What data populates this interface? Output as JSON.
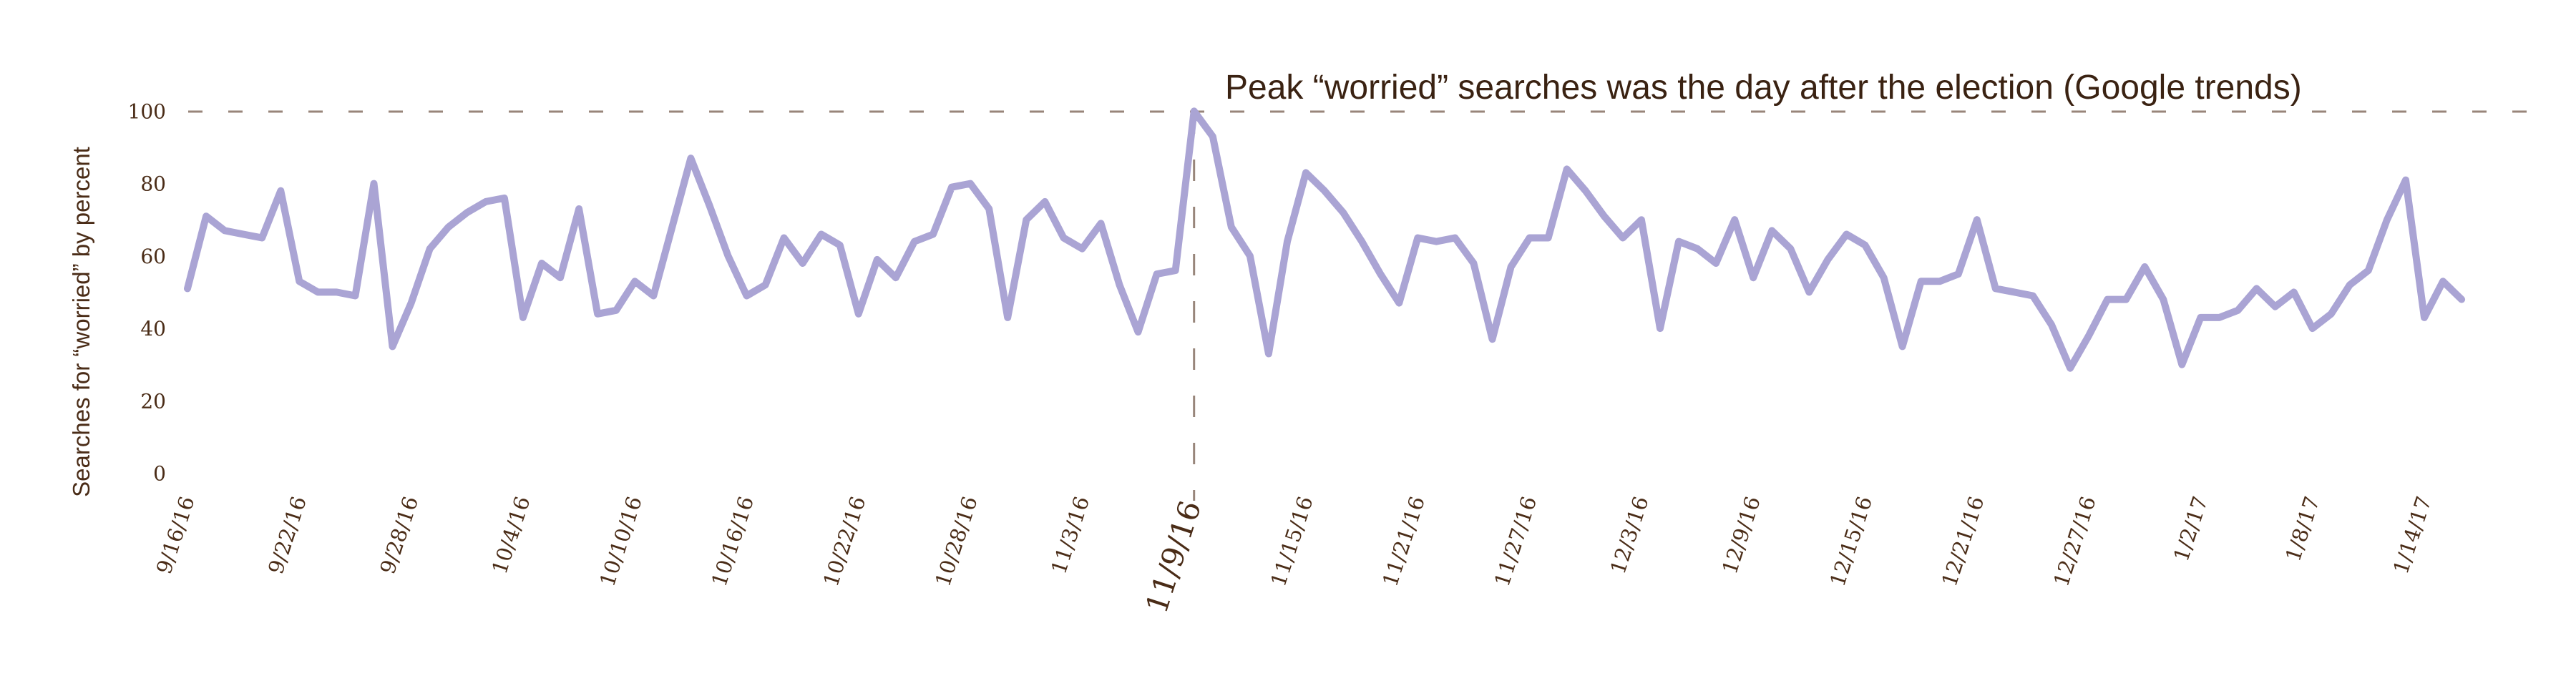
{
  "annotation": "Peak “worried” searches was the day after the election (Google trends)",
  "y_axis": {
    "title": "Searches for “worried” by percent",
    "ticks": [
      0,
      20,
      40,
      60,
      80,
      100
    ]
  },
  "x_axis": {
    "ticks": [
      {
        "label": "9/16/16",
        "day": 0,
        "emphasis": false
      },
      {
        "label": "9/22/16",
        "day": 6,
        "emphasis": false
      },
      {
        "label": "9/28/16",
        "day": 12,
        "emphasis": false
      },
      {
        "label": "10/4/16",
        "day": 18,
        "emphasis": false
      },
      {
        "label": "10/10/16",
        "day": 24,
        "emphasis": false
      },
      {
        "label": "10/16/16",
        "day": 30,
        "emphasis": false
      },
      {
        "label": "10/22/16",
        "day": 36,
        "emphasis": false
      },
      {
        "label": "10/28/16",
        "day": 42,
        "emphasis": false
      },
      {
        "label": "11/3/16",
        "day": 48,
        "emphasis": false
      },
      {
        "label": "11/9/16",
        "day": 54,
        "emphasis": true
      },
      {
        "label": "11/15/16",
        "day": 60,
        "emphasis": false
      },
      {
        "label": "11/21/16",
        "day": 66,
        "emphasis": false
      },
      {
        "label": "11/27/16",
        "day": 72,
        "emphasis": false
      },
      {
        "label": "12/3/16",
        "day": 78,
        "emphasis": false
      },
      {
        "label": "12/9/16",
        "day": 84,
        "emphasis": false
      },
      {
        "label": "12/15/16",
        "day": 90,
        "emphasis": false
      },
      {
        "label": "12/21/16",
        "day": 96,
        "emphasis": false
      },
      {
        "label": "12/27/16",
        "day": 102,
        "emphasis": false
      },
      {
        "label": "1/2/17",
        "day": 108,
        "emphasis": false
      },
      {
        "label": "1/8/17",
        "day": 114,
        "emphasis": false
      },
      {
        "label": "1/14/17",
        "day": 120,
        "emphasis": false
      }
    ]
  },
  "colors": {
    "line": "#aaa4d4",
    "guide": "#98857a",
    "text": "#4a2c17",
    "annotation_text": "#3a2212",
    "background": "#ffffff"
  },
  "chart_data": {
    "type": "line",
    "title": "Peak “worried” searches was the day after the election (Google trends)",
    "xlabel": "",
    "ylabel": "Searches for “worried” by percent",
    "ylim": [
      0,
      100
    ],
    "y_ticks": [
      0,
      20,
      40,
      60,
      80,
      100
    ],
    "grid": "off",
    "legend": "none",
    "guides": {
      "horizontal_dashed_at_y": 100,
      "vertical_dashed_at_x": "11/9/16"
    },
    "peak": {
      "date": "11/9/16",
      "value": 100
    },
    "x": [
      "9/16/16",
      "9/17/16",
      "9/18/16",
      "9/19/16",
      "9/20/16",
      "9/21/16",
      "9/22/16",
      "9/23/16",
      "9/24/16",
      "9/25/16",
      "9/26/16",
      "9/27/16",
      "9/28/16",
      "9/29/16",
      "9/30/16",
      "10/1/16",
      "10/2/16",
      "10/3/16",
      "10/4/16",
      "10/5/16",
      "10/6/16",
      "10/7/16",
      "10/8/16",
      "10/9/16",
      "10/10/16",
      "10/11/16",
      "10/12/16",
      "10/13/16",
      "10/14/16",
      "10/15/16",
      "10/16/16",
      "10/17/16",
      "10/18/16",
      "10/19/16",
      "10/20/16",
      "10/21/16",
      "10/22/16",
      "10/23/16",
      "10/24/16",
      "10/25/16",
      "10/26/16",
      "10/27/16",
      "10/28/16",
      "10/29/16",
      "10/30/16",
      "10/31/16",
      "11/1/16",
      "11/2/16",
      "11/3/16",
      "11/4/16",
      "11/5/16",
      "11/6/16",
      "11/7/16",
      "11/8/16",
      "11/9/16",
      "11/10/16",
      "11/11/16",
      "11/12/16",
      "11/13/16",
      "11/14/16",
      "11/15/16",
      "11/16/16",
      "11/17/16",
      "11/18/16",
      "11/19/16",
      "11/20/16",
      "11/21/16",
      "11/22/16",
      "11/23/16",
      "11/24/16",
      "11/25/16",
      "11/26/16",
      "11/27/16",
      "11/28/16",
      "11/29/16",
      "11/30/16",
      "12/1/16",
      "12/2/16",
      "12/3/16",
      "12/4/16",
      "12/5/16",
      "12/6/16",
      "12/7/16",
      "12/8/16",
      "12/9/16",
      "12/10/16",
      "12/11/16",
      "12/12/16",
      "12/13/16",
      "12/14/16",
      "12/15/16",
      "12/16/16",
      "12/17/16",
      "12/18/16",
      "12/19/16",
      "12/20/16",
      "12/21/16",
      "12/22/16",
      "12/23/16",
      "12/24/16",
      "12/25/16",
      "12/26/16",
      "12/27/16",
      "12/28/16",
      "12/29/16",
      "12/30/16",
      "12/31/16",
      "1/1/17",
      "1/2/17",
      "1/3/17",
      "1/4/17",
      "1/5/17",
      "1/6/17",
      "1/7/17",
      "1/8/17",
      "1/9/17",
      "1/10/17",
      "1/11/17",
      "1/12/17",
      "1/13/17",
      "1/14/17",
      "1/15/17",
      "1/16/17"
    ],
    "values": [
      51,
      71,
      67,
      66,
      65,
      78,
      53,
      50,
      50,
      49,
      80,
      35,
      47,
      62,
      68,
      72,
      75,
      76,
      43,
      58,
      54,
      73,
      44,
      45,
      53,
      49,
      68,
      87,
      74,
      60,
      49,
      52,
      65,
      58,
      66,
      63,
      44,
      59,
      54,
      64,
      66,
      79,
      80,
      73,
      43,
      70,
      75,
      65,
      62,
      69,
      52,
      39,
      55,
      56,
      100,
      93,
      68,
      60,
      33,
      64,
      83,
      78,
      72,
      64,
      55,
      47,
      65,
      64,
      65,
      58,
      37,
      57,
      65,
      65,
      84,
      78,
      71,
      65,
      70,
      40,
      64,
      62,
      58,
      70,
      54,
      67,
      62,
      50,
      59,
      66,
      63,
      54,
      35,
      53,
      53,
      55,
      70,
      51,
      50,
      49,
      41,
      29,
      38,
      48,
      48,
      57,
      48,
      30,
      43,
      43,
      45,
      51,
      46,
      50,
      40,
      44,
      52,
      56,
      70,
      81,
      43,
      53,
      48
    ]
  }
}
